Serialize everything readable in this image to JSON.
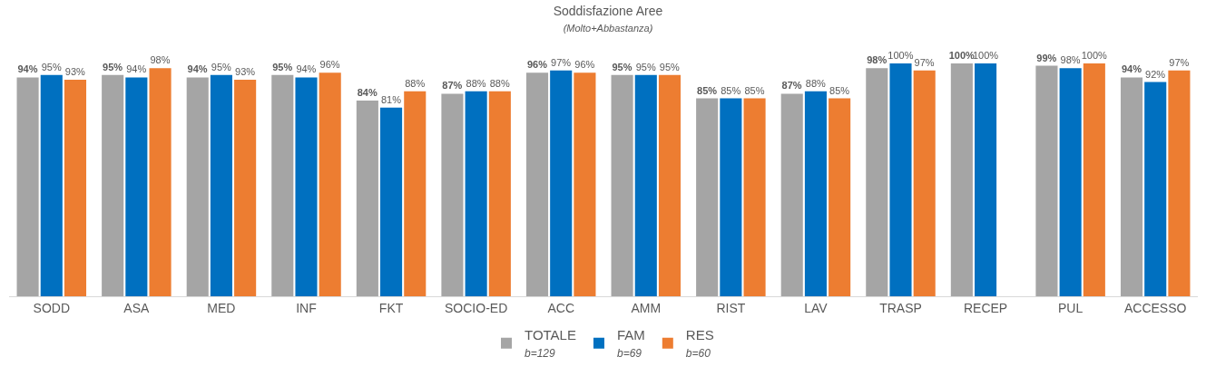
{
  "chart_data": {
    "type": "bar",
    "title": "Soddisfazione Aree",
    "subtitle": "(Molto+Abbastanza)",
    "categories": [
      "SODD",
      "ASA",
      "MED",
      "INF",
      "FKT",
      "SOCIO-ED",
      "ACC",
      "AMM",
      "RIST",
      "LAV",
      "TRASP",
      "RECEP",
      "PUL",
      "ACCESSO"
    ],
    "series": [
      {
        "name": "TOTALE",
        "color": "#a5a5a5",
        "values": [
          94,
          95,
          94,
          95,
          84,
          87,
          96,
          95,
          85,
          87,
          98,
          100,
          99,
          94
        ],
        "value_labels": [
          "94%",
          "95%",
          "94%",
          "95%",
          "84%",
          "87%",
          "96%",
          "95%",
          "85%",
          "87%",
          "98%",
          "100%",
          "99%",
          "94%"
        ]
      },
      {
        "name": "FAM",
        "color": "#0070c0",
        "values": [
          95,
          94,
          95,
          94,
          81,
          88,
          97,
          95,
          85,
          88,
          100,
          100,
          98,
          92
        ],
        "value_labels": [
          "95%",
          "94%",
          "95%",
          "94%",
          "81%",
          "88%",
          "97%",
          "95%",
          "85%",
          "88%",
          "100%",
          "100%",
          "98%",
          "92%"
        ]
      },
      {
        "name": "RES",
        "color": "#ed7d31",
        "values": [
          93,
          98,
          93,
          96,
          88,
          88,
          96,
          95,
          85,
          85,
          97,
          null,
          100,
          97
        ],
        "value_labels": [
          "93%",
          "98%",
          "93%",
          "96%",
          "88%",
          "88%",
          "96%",
          "95%",
          "85%",
          "85%",
          "97%",
          null,
          "100%",
          "97%"
        ]
      }
    ],
    "annotations": [
      "b=129",
      "b=69",
      "b=60"
    ],
    "ylim": [
      0,
      100
    ],
    "tick_labels": "x",
    "legend": "bottom"
  }
}
